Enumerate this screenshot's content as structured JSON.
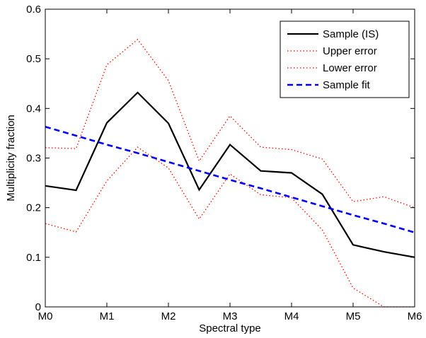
{
  "chart_data": {
    "type": "line",
    "title": "",
    "xlabel": "Spectral type",
    "ylabel": "Multiplicity fraction",
    "x": [
      0,
      0.5,
      1,
      1.5,
      2,
      2.5,
      3,
      3.5,
      4,
      4.5,
      5,
      5.5,
      6
    ],
    "xlim": [
      0,
      6
    ],
    "ylim": [
      0,
      0.6
    ],
    "x_ticks": [
      0,
      1,
      2,
      3,
      4,
      5,
      6
    ],
    "x_tick_labels": [
      "M0",
      "M1",
      "M2",
      "M3",
      "M4",
      "M5",
      "M6"
    ],
    "y_ticks": [
      0,
      0.1,
      0.2,
      0.3,
      0.4,
      0.5,
      0.6
    ],
    "y_tick_labels": [
      "0",
      "0.1",
      "0.2",
      "0.3",
      "0.4",
      "0.5",
      "0.6"
    ],
    "grid": false,
    "legend_position": "top-right",
    "series": [
      {
        "name": "Sample (IS)",
        "color": "#000000",
        "style": "solid",
        "values": [
          0.244,
          0.235,
          0.371,
          0.432,
          0.37,
          0.236,
          0.327,
          0.274,
          0.27,
          0.227,
          0.125,
          0.111,
          0.1
        ]
      },
      {
        "name": "Upper error",
        "color": "#ff0000",
        "style": "dotted",
        "values": [
          0.321,
          0.319,
          0.488,
          0.539,
          0.456,
          0.294,
          0.385,
          0.322,
          0.317,
          0.298,
          0.212,
          0.222,
          0.2
        ]
      },
      {
        "name": "Lower error",
        "color": "#ff0000",
        "style": "dotted",
        "values": [
          0.168,
          0.151,
          0.254,
          0.322,
          0.28,
          0.177,
          0.268,
          0.226,
          0.22,
          0.155,
          0.038,
          0.0,
          0.0
        ]
      },
      {
        "name": "Sample fit",
        "color": "#0000ff",
        "style": "dashed",
        "values": [
          0.363,
          0.345,
          0.327,
          0.31,
          0.292,
          0.274,
          0.256,
          0.239,
          0.221,
          0.203,
          0.185,
          0.168,
          0.15
        ]
      }
    ]
  }
}
